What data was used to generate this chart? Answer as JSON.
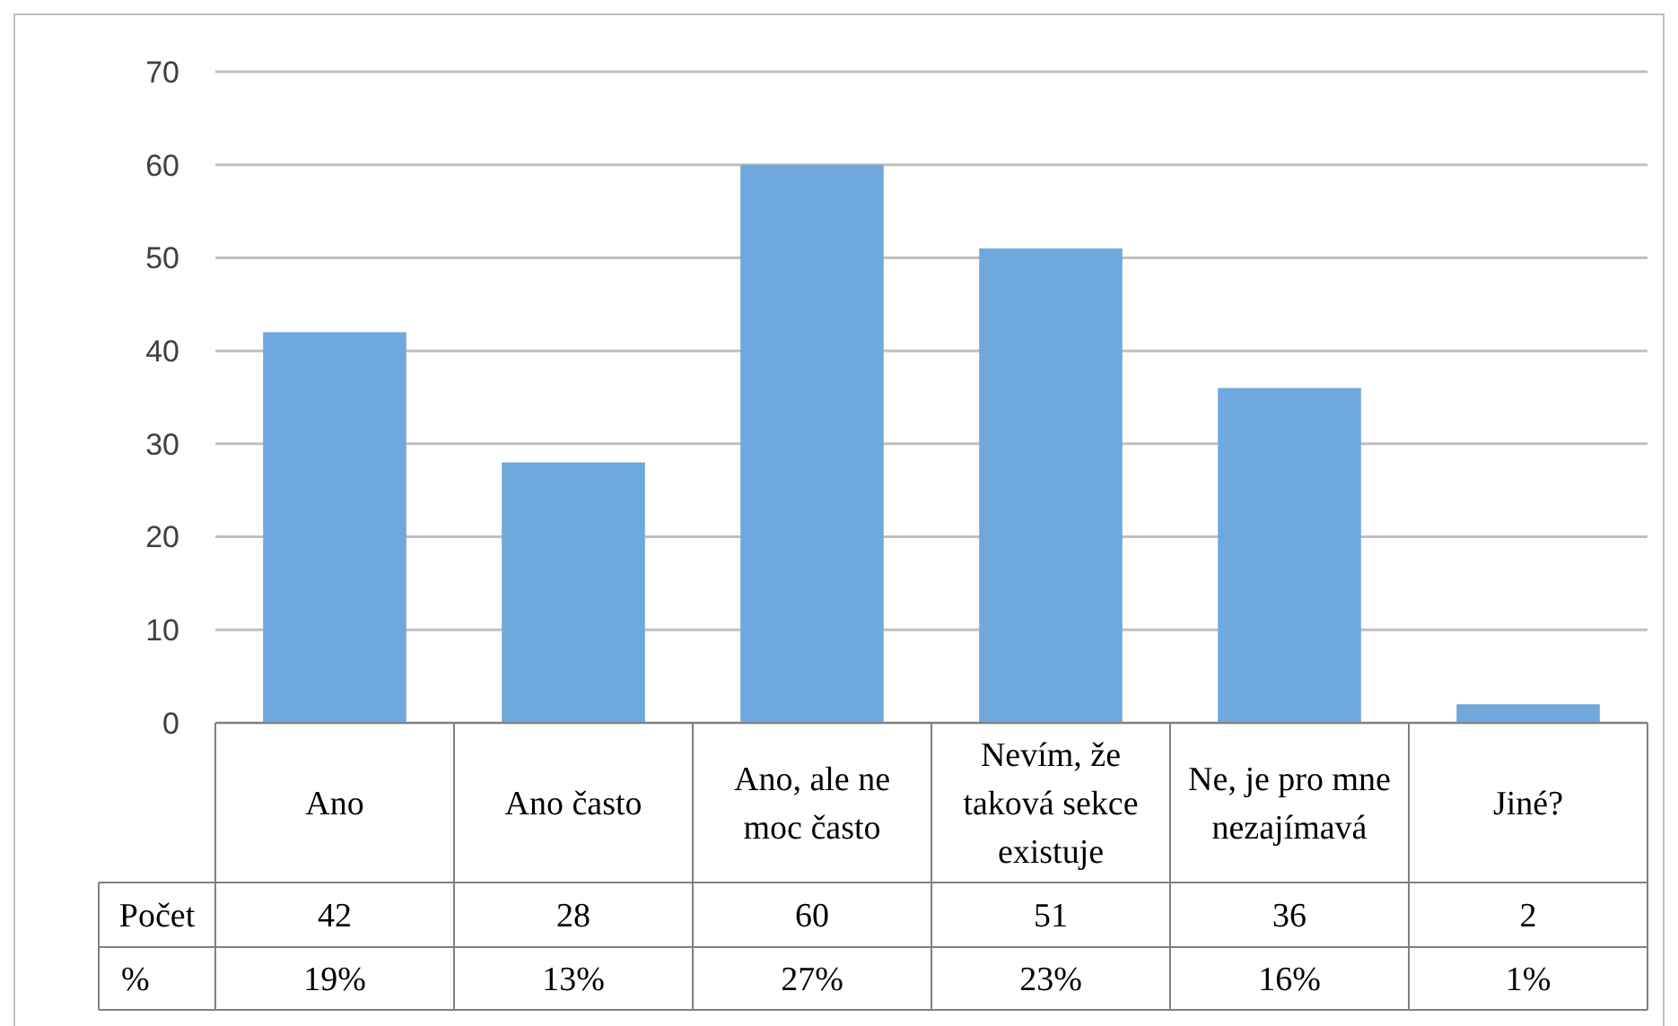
{
  "chart_data": {
    "type": "bar",
    "categories": [
      "Ano",
      "Ano často",
      "Ano, ale ne moc často",
      "Nevím, že taková sekce existuje",
      "Ne, je pro mne nezajímavá",
      "Jiné?"
    ],
    "series": [
      {
        "name": "Počet",
        "color": "#6fa8dc",
        "values": [
          42,
          28,
          60,
          51,
          36,
          2
        ]
      }
    ],
    "ylim": [
      0,
      70
    ],
    "yticks": [
      0,
      10,
      20,
      30,
      40,
      50,
      60,
      70
    ],
    "grid": "y",
    "data_labels": true,
    "legend": "bottom",
    "annotations": [
      "%",
      "19%",
      "13%",
      "27%",
      "23%",
      "16%",
      "1%"
    ]
  }
}
